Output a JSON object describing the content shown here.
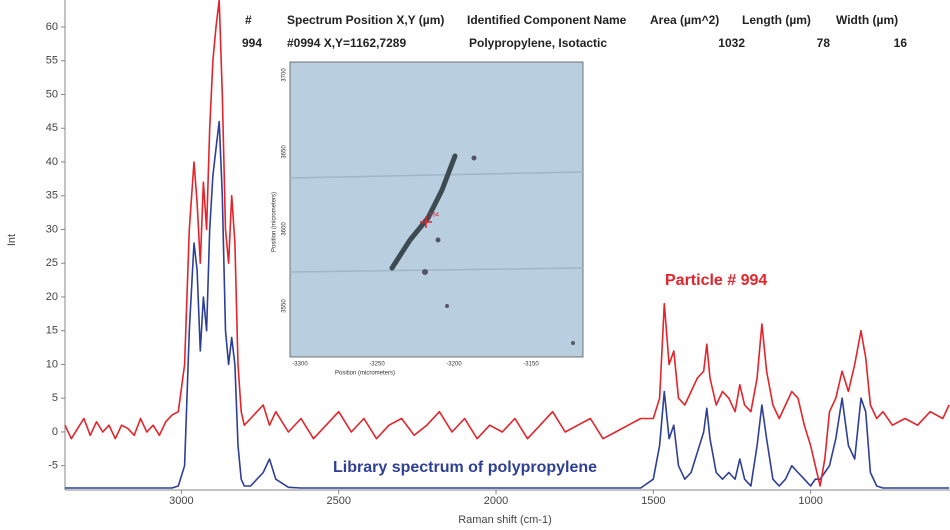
{
  "chart_data": {
    "type": "line",
    "xlabel": "Raman shift (cm-1)",
    "ylabel": "Int",
    "xlim": [
      3370,
      557
    ],
    "xticks": [
      3000,
      2500,
      2000,
      1500,
      1000
    ],
    "ylim": [
      -8.6,
      64
    ],
    "yticks": [
      -5,
      0,
      5,
      10,
      15,
      20,
      25,
      30,
      35,
      40,
      45,
      50,
      55,
      60
    ],
    "annotations": [
      "Particle # 994",
      "Library spectrum of polypropylene"
    ],
    "x": [
      3370,
      3350,
      3330,
      3310,
      3290,
      3270,
      3250,
      3230,
      3210,
      3190,
      3170,
      3150,
      3130,
      3110,
      3090,
      3070,
      3050,
      3030,
      3010,
      2990,
      2975,
      2960,
      2950,
      2940,
      2930,
      2920,
      2910,
      2900,
      2890,
      2880,
      2870,
      2860,
      2850,
      2840,
      2830,
      2820,
      2810,
      2800,
      2780,
      2740,
      2720,
      2700,
      2660,
      2620,
      2580,
      2540,
      2500,
      2460,
      2420,
      2380,
      2340,
      2300,
      2260,
      2220,
      2180,
      2140,
      2100,
      2060,
      2020,
      1980,
      1940,
      1900,
      1860,
      1820,
      1780,
      1740,
      1700,
      1660,
      1620,
      1580,
      1540,
      1500,
      1480,
      1465,
      1450,
      1435,
      1420,
      1400,
      1380,
      1360,
      1340,
      1330,
      1320,
      1300,
      1280,
      1260,
      1240,
      1225,
      1210,
      1190,
      1170,
      1155,
      1140,
      1120,
      1100,
      1080,
      1060,
      1040,
      1020,
      1000,
      985,
      970,
      955,
      940,
      920,
      900,
      880,
      860,
      840,
      825,
      810,
      790,
      770,
      740,
      700,
      660,
      620,
      580,
      560
    ],
    "series": [
      {
        "name": "Particle # 994",
        "color": "#e3242b",
        "values": [
          1,
          -1,
          0.5,
          2,
          -0.5,
          1.5,
          0,
          1,
          -1,
          1,
          0.5,
          -0.5,
          2,
          0,
          1,
          -0.5,
          1.5,
          2.5,
          3,
          10,
          30,
          40,
          34,
          25,
          37,
          30,
          45,
          55,
          60,
          64,
          50,
          30,
          25,
          35,
          28,
          10,
          3,
          1,
          2,
          4,
          1,
          3,
          0,
          2,
          -1,
          1,
          3,
          0,
          2,
          -1,
          1,
          2,
          -0.5,
          1,
          3,
          0,
          2,
          -1,
          1,
          0,
          2,
          -1,
          1,
          3,
          0,
          1,
          2,
          -1,
          0,
          1,
          2,
          2,
          5,
          19,
          10,
          12,
          5,
          4,
          6,
          8,
          9,
          13,
          8,
          4,
          6,
          5,
          3,
          7,
          4,
          3,
          8,
          16,
          9,
          4,
          2,
          4,
          6,
          5,
          1,
          -2,
          -5,
          -8,
          -4,
          3,
          5,
          9,
          6,
          10,
          15,
          11,
          4,
          2,
          3,
          1,
          2,
          1,
          3,
          2,
          4
        ]
      },
      {
        "name": "Library spectrum of polypropylene",
        "color": "#2e3f96",
        "values": [
          -8.3,
          -8.3,
          -8.3,
          -8.3,
          -8.3,
          -8.3,
          -8.3,
          -8.3,
          -8.3,
          -8.3,
          -8.3,
          -8.3,
          -8.3,
          -8.3,
          -8.3,
          -8.3,
          -8.3,
          -8.3,
          -8,
          -5,
          15,
          28,
          24,
          12,
          20,
          15,
          30,
          38,
          42,
          46,
          35,
          15,
          10,
          14,
          10,
          -2,
          -7,
          -8,
          -8,
          -6,
          -4,
          -7,
          -8.2,
          -8.3,
          -8.3,
          -8.3,
          -8.3,
          -8.3,
          -8.3,
          -8.3,
          -8.3,
          -8.3,
          -8.3,
          -8.3,
          -8.3,
          -8.3,
          -8.3,
          -8.3,
          -8.3,
          -8.3,
          -8.3,
          -8.3,
          -8.3,
          -8.3,
          -8.3,
          -8.3,
          -8.3,
          -8.3,
          -8.3,
          -8.3,
          -8.3,
          -7,
          -2,
          6,
          -1,
          1,
          -5,
          -7,
          -6,
          -3,
          0,
          3.5,
          -1,
          -6,
          -7,
          -6,
          -7,
          -4,
          -7,
          -8,
          -2,
          4,
          -1,
          -7,
          -8,
          -7,
          -5,
          -6,
          -7,
          -8,
          -7,
          -7,
          -6,
          -5,
          -1,
          5,
          -2,
          -4,
          5,
          3,
          -6,
          -8,
          -8.3,
          -8.3,
          -8.3,
          -8.3,
          -8.3,
          -8.3,
          -8.3
        ]
      }
    ]
  },
  "table": {
    "header": [
      "#",
      "Spectrum Position X,Y (µm)",
      "Identified Component Name",
      "Area (µm^2)",
      "Length (µm)",
      "Width (µm)"
    ],
    "row": [
      "994",
      "#0994 X,Y=1162,7289",
      "Polypropylene, Isotactic",
      "1032",
      "78",
      "16"
    ]
  },
  "inset": {
    "yticks": [
      "3700",
      "3650",
      "3600",
      "3550"
    ],
    "xticks": [
      "-3300",
      "-3250",
      "-3200",
      "-3150"
    ],
    "xlabel": "Position (micrometers)",
    "ylabel": "Position (micrometers)",
    "marker_label": "994"
  }
}
